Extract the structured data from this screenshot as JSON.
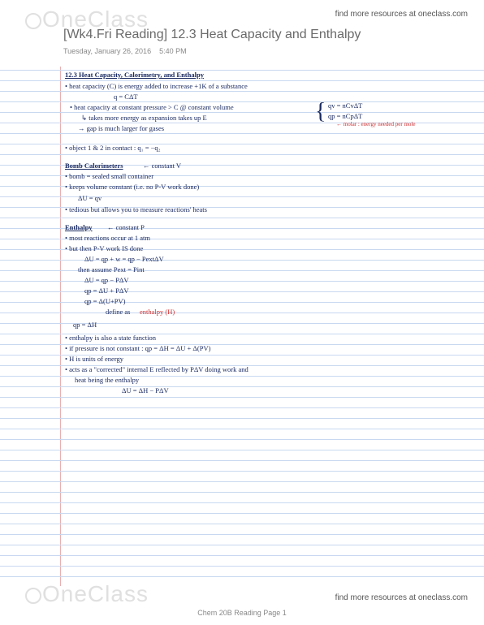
{
  "brand": "OneClass",
  "topLink": "find more resources at oneclass.com",
  "bottomLink": "find more resources at oneclass.com",
  "pageTitle": "[Wk4.Fri Reading] 12.3 Heat Capacity and Enthalpy",
  "dateDay": "Tuesday, January 26, 2016",
  "dateTime": "5:40 PM",
  "footerPage": "Chem 20B Reading Page 1",
  "lines": {
    "sectionHead": "12.3 Heat Capacity, Calorimetry, and Enthalpy",
    "l1": "• heat capacity (C) is energy added to increase +1K of a substance",
    "l2": "q = CΔT",
    "l3": "• heat capacity at constant pressure > C @ constant volume",
    "l4": "↳ takes more energy as expansion takes up E",
    "l5": "→ gap is much larger for gases",
    "side1": "qv = nCvΔT",
    "side2": "qp = nCpΔT",
    "side3": "← molar : energy needed per mole",
    "l6": "• object 1 & 2 in contact :  q₁ = −q₂",
    "bomb": "Bomb Calorimeters",
    "bombArrow": "← constant V",
    "l7": "• bomb = sealed small container",
    "l8": "• keeps volume constant  (i.e. no P-V work done)",
    "l9": "ΔU = qv",
    "l10": "• tedious but allows you to measure reactions' heats",
    "enth": "Enthalpy",
    "enthArrow": "← constant P",
    "l11": "• most reactions occur at 1 atm",
    "l12": "• but then P-V work IS done",
    "l13": "ΔU = qp + w = qp − PextΔV",
    "l14": "then assume  Pext = Pint",
    "l15": "ΔU = qp − PΔV",
    "l16": "qp = ΔU + PΔV",
    "l17": "qp = Δ(U+PV)",
    "l18": "define as",
    "l18b": "enthalpy (H)",
    "l19": "qp = ΔH",
    "l20": "• enthalpy is also a state function",
    "l21": "• if pressure is not constant :   qp = ΔH = ΔU + Δ(PV)",
    "l22": "• H is units of energy",
    "l23": "• acts as a \"corrected\" internal E reflected by PΔV doing work and",
    "l24": "heat being the enthalpy",
    "l25": "ΔU = ΔH − PΔV"
  },
  "colors": {
    "ink": "#1a2a60",
    "red": "#d03030",
    "ruled": "#c8d8f0",
    "marginRed": "#e8b0b0",
    "watermark": "#e0e0e0",
    "grayText": "#6a6a6a",
    "lightGray": "#888888"
  },
  "layout": {
    "ruledStart": 4,
    "ruledSpacing": 13,
    "ruledCount": 49
  }
}
